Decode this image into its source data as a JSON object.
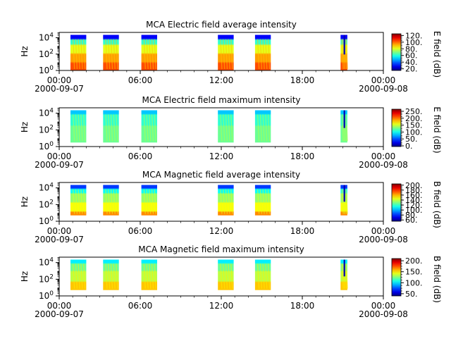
{
  "chart_data": [
    {
      "type": "heatmap",
      "title": "MCA  Electric field average intensity",
      "ylabel": "Hz",
      "y_scale": "log",
      "y_ticks": [
        "10^4",
        "10^2",
        "10^0"
      ],
      "x_ticks": [
        "00:00",
        "06:00",
        "12:00",
        "18:00",
        "00:00"
      ],
      "x_dates": [
        "2000-09-07",
        "2000-09-08"
      ],
      "x_range": [
        "2000-09-07 00:00",
        "2000-09-08 00:00"
      ],
      "colorbar_label": "E field (dB)",
      "colorbar_ticks": [
        "120.",
        "100.",
        "80.",
        "60.",
        "40.",
        "20."
      ],
      "colorbar_range": [
        15,
        125
      ],
      "data_segments": [
        [
          "00:50",
          "02:00"
        ],
        [
          "03:15",
          "04:25"
        ],
        [
          "06:05",
          "07:15"
        ],
        [
          "11:45",
          "12:55"
        ],
        [
          "14:30",
          "15:40"
        ],
        [
          "20:50",
          "21:20"
        ]
      ],
      "low_freq_cutoff_hz": 1
    },
    {
      "type": "heatmap",
      "title": "MCA  Electric field maximum intensity",
      "ylabel": "Hz",
      "y_scale": "log",
      "y_ticks": [
        "10^4",
        "10^2",
        "10^0"
      ],
      "x_ticks": [
        "00:00",
        "06:00",
        "12:00",
        "18:00",
        "00:00"
      ],
      "x_dates": [
        "2000-09-07",
        "2000-09-08"
      ],
      "x_range": [
        "2000-09-07 00:00",
        "2000-09-08 00:00"
      ],
      "colorbar_label": "E field (dB)",
      "colorbar_ticks": [
        "250.",
        "200.",
        "150.",
        "100.",
        "50.",
        "0."
      ],
      "colorbar_range": [
        -5,
        265
      ],
      "data_segments": [
        [
          "00:50",
          "02:00"
        ],
        [
          "03:15",
          "04:25"
        ],
        [
          "06:05",
          "07:15"
        ],
        [
          "11:45",
          "12:55"
        ],
        [
          "14:30",
          "15:40"
        ],
        [
          "20:50",
          "21:20"
        ]
      ],
      "low_freq_cutoff_hz": 3
    },
    {
      "type": "heatmap",
      "title": "MCA  Magnetic field average intensity",
      "ylabel": "Hz",
      "y_scale": "log",
      "y_ticks": [
        "10^4",
        "10^2",
        "10^0"
      ],
      "x_ticks": [
        "00:00",
        "06:00",
        "12:00",
        "18:00",
        "00:00"
      ],
      "x_dates": [
        "2000-09-07",
        "2000-09-08"
      ],
      "x_range": [
        "2000-09-07 00:00",
        "2000-09-08 00:00"
      ],
      "colorbar_label": "B field (dB)",
      "colorbar_ticks": [
        "200.",
        "180.",
        "160.",
        "140.",
        "120.",
        "100.",
        "80.",
        "60."
      ],
      "colorbar_range": [
        55,
        205
      ],
      "data_segments": [
        [
          "00:50",
          "02:00"
        ],
        [
          "03:15",
          "04:25"
        ],
        [
          "06:05",
          "07:15"
        ],
        [
          "11:45",
          "12:55"
        ],
        [
          "14:30",
          "15:40"
        ],
        [
          "20:50",
          "21:20"
        ]
      ],
      "low_freq_cutoff_hz": 5
    },
    {
      "type": "heatmap",
      "title": "MCA  Magnetic field maximum intensity",
      "ylabel": "Hz",
      "y_scale": "log",
      "y_ticks": [
        "10^4",
        "10^2",
        "10^0"
      ],
      "x_ticks": [
        "00:00",
        "06:00",
        "12:00",
        "18:00",
        "00:00"
      ],
      "x_dates": [
        "2000-09-07",
        "2000-09-08"
      ],
      "x_range": [
        "2000-09-07 00:00",
        "2000-09-08 00:00"
      ],
      "colorbar_label": "B field (dB)",
      "colorbar_ticks": [
        "200.",
        "150.",
        "100.",
        "50."
      ],
      "colorbar_range": [
        40,
        210
      ],
      "data_segments": [
        [
          "00:50",
          "02:00"
        ],
        [
          "03:15",
          "04:25"
        ],
        [
          "06:05",
          "07:15"
        ],
        [
          "11:45",
          "12:55"
        ],
        [
          "14:30",
          "15:40"
        ],
        [
          "20:50",
          "21:20"
        ]
      ],
      "low_freq_cutoff_hz": 5
    }
  ]
}
